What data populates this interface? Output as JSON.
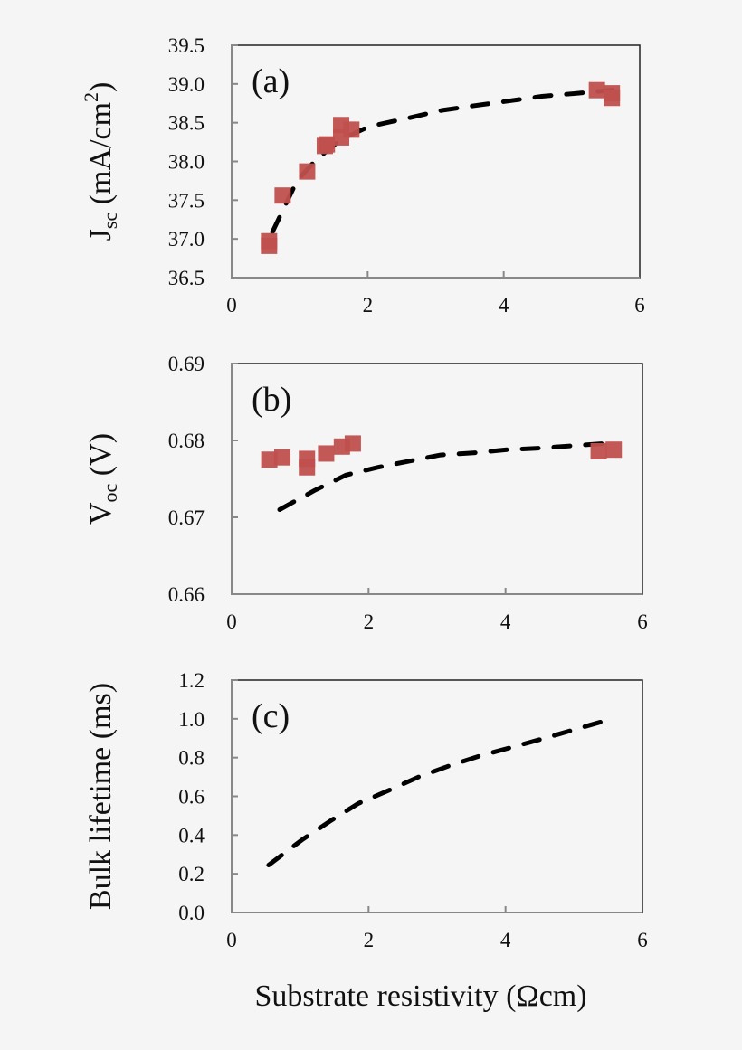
{
  "colors": {
    "marker": "#c0504d",
    "fit": "#000000",
    "background": "#f5f5f5"
  },
  "xlabel": "Substrate resistivity (Ωcm)",
  "chart_data": [
    {
      "type": "scatter",
      "panel": "(a)",
      "ylabel_parts": [
        "J",
        "sc",
        " (mA/cm",
        "2",
        ")"
      ],
      "xlim": [
        0,
        6
      ],
      "ylim": [
        36.5,
        39.5
      ],
      "xticks": [
        "0",
        "2",
        "4",
        "6"
      ],
      "yticks": [
        "36.5",
        "37.0",
        "37.5",
        "38.0",
        "38.5",
        "39.0",
        "39.5"
      ],
      "markers": {
        "x": [
          0.55,
          0.55,
          0.75,
          1.11,
          1.37,
          1.4,
          1.61,
          1.61,
          1.76,
          5.37,
          5.59,
          5.59
        ],
        "y": [
          36.91,
          36.97,
          37.56,
          37.87,
          38.2,
          38.22,
          38.31,
          38.47,
          38.41,
          38.92,
          38.88,
          38.82
        ]
      },
      "fit": {
        "x": [
          0.6,
          0.96,
          1.24,
          1.6,
          2.02,
          2.6,
          3.09,
          3.57,
          4.07,
          4.56,
          5.09,
          5.6
        ],
        "y": [
          37.09,
          37.75,
          38.02,
          38.28,
          38.45,
          38.56,
          38.66,
          38.72,
          38.78,
          38.84,
          38.88,
          38.92
        ]
      }
    },
    {
      "type": "scatter",
      "panel": "(b)",
      "ylabel_parts": [
        "V",
        "oc",
        " (V)"
      ],
      "xlim": [
        0,
        6
      ],
      "ylim": [
        0.66,
        0.69
      ],
      "xticks": [
        "0",
        "2",
        "4",
        "6"
      ],
      "yticks": [
        "0.66",
        "0.67",
        "0.68",
        "0.69"
      ],
      "markers": {
        "x": [
          0.55,
          0.74,
          1.1,
          1.1,
          1.38,
          1.61,
          1.77,
          5.36,
          5.58
        ],
        "y": [
          0.6775,
          0.6778,
          0.6776,
          0.6765,
          0.6783,
          0.6792,
          0.6796,
          0.6786,
          0.6788
        ]
      },
      "fit": {
        "x": [
          0.7,
          1.21,
          1.67,
          2.13,
          2.59,
          3.05,
          3.56,
          4.03,
          4.51,
          4.98,
          5.6
        ],
        "y": [
          0.671,
          0.6735,
          0.6755,
          0.6765,
          0.6773,
          0.6781,
          0.6784,
          0.6788,
          0.679,
          0.6793,
          0.6797
        ]
      }
    },
    {
      "type": "line",
      "panel": "(c)",
      "ylabel_parts": [
        "Bulk lifetime (ms)"
      ],
      "xlim": [
        0,
        6
      ],
      "ylim": [
        0.0,
        1.2
      ],
      "xticks": [
        "0",
        "2",
        "4",
        "6"
      ],
      "yticks": [
        "0.0",
        "0.2",
        "0.4",
        "0.6",
        "0.8",
        "1.0",
        "1.2"
      ],
      "fit": {
        "x": [
          0.54,
          1.03,
          1.43,
          1.85,
          2.29,
          2.73,
          3.2,
          3.64,
          4.1,
          4.57,
          5.06,
          5.6
        ],
        "y": [
          0.245,
          0.376,
          0.47,
          0.563,
          0.63,
          0.7,
          0.76,
          0.81,
          0.854,
          0.9,
          0.95,
          1.005
        ]
      }
    }
  ]
}
